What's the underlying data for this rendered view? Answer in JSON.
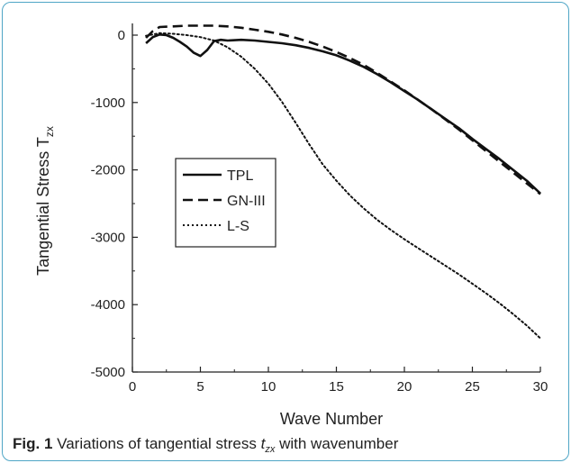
{
  "caption": {
    "fig_label": "Fig. 1",
    "text_before": "Variations of tangential stress ",
    "symbol": "t",
    "symbol_sub": "zx",
    "text_after": " with wavenumber"
  },
  "chart_data": {
    "type": "line",
    "xlabel": "Wave Number",
    "ylabel": "Tangential Stress T",
    "ylabel_sub": "zx",
    "xlim": [
      0,
      30
    ],
    "ylim": [
      -5000,
      200
    ],
    "x_ticks": [
      0,
      5,
      10,
      15,
      20,
      25,
      30
    ],
    "y_ticks": [
      0,
      -1000,
      -2000,
      -3000,
      -4000,
      -5000
    ],
    "grid": false,
    "legend_position": "center-left",
    "series": [
      {
        "name": "TPL",
        "style": "solid",
        "x": [
          1,
          1.5,
          2,
          2.5,
          3,
          3.5,
          4,
          4.5,
          5,
          5.5,
          6,
          6.5,
          7,
          8,
          9,
          10,
          11,
          12,
          13,
          14,
          15,
          16,
          17,
          18,
          19,
          20,
          21,
          22,
          23,
          24,
          25,
          26,
          27,
          28,
          29,
          30
        ],
        "y": [
          -120,
          -30,
          10,
          0,
          -40,
          -100,
          -170,
          -260,
          -310,
          -220,
          -90,
          -70,
          -80,
          -70,
          -80,
          -100,
          -120,
          -150,
          -190,
          -240,
          -300,
          -380,
          -470,
          -580,
          -700,
          -830,
          -960,
          -1100,
          -1240,
          -1380,
          -1540,
          -1690,
          -1840,
          -2000,
          -2160,
          -2350
        ]
      },
      {
        "name": "GN-III",
        "style": "dashed",
        "x": [
          1,
          1.5,
          2,
          3,
          4,
          5,
          6,
          7,
          8,
          9,
          10,
          11,
          12,
          13,
          14,
          15,
          16,
          17,
          18,
          19,
          20,
          21,
          22,
          23,
          24,
          25,
          26,
          27,
          28,
          29,
          30
        ],
        "y": [
          -40,
          60,
          120,
          130,
          140,
          140,
          140,
          130,
          110,
          80,
          50,
          10,
          -40,
          -100,
          -170,
          -250,
          -340,
          -440,
          -560,
          -690,
          -820,
          -960,
          -1100,
          -1250,
          -1400,
          -1560,
          -1720,
          -1880,
          -2040,
          -2200,
          -2360
        ]
      },
      {
        "name": "L-S",
        "style": "dotted",
        "x": [
          1,
          1.5,
          2,
          3,
          4,
          5,
          6,
          7,
          8,
          9,
          10,
          11,
          12,
          13,
          14,
          15,
          16,
          17,
          18,
          19,
          20,
          21,
          22,
          23,
          24,
          25,
          26,
          27,
          28,
          29,
          30
        ],
        "y": [
          -10,
          10,
          30,
          20,
          0,
          -30,
          -80,
          -180,
          -320,
          -500,
          -720,
          -990,
          -1300,
          -1620,
          -1920,
          -2160,
          -2380,
          -2570,
          -2740,
          -2890,
          -3030,
          -3160,
          -3290,
          -3420,
          -3550,
          -3690,
          -3830,
          -3980,
          -4140,
          -4310,
          -4500
        ]
      }
    ]
  }
}
